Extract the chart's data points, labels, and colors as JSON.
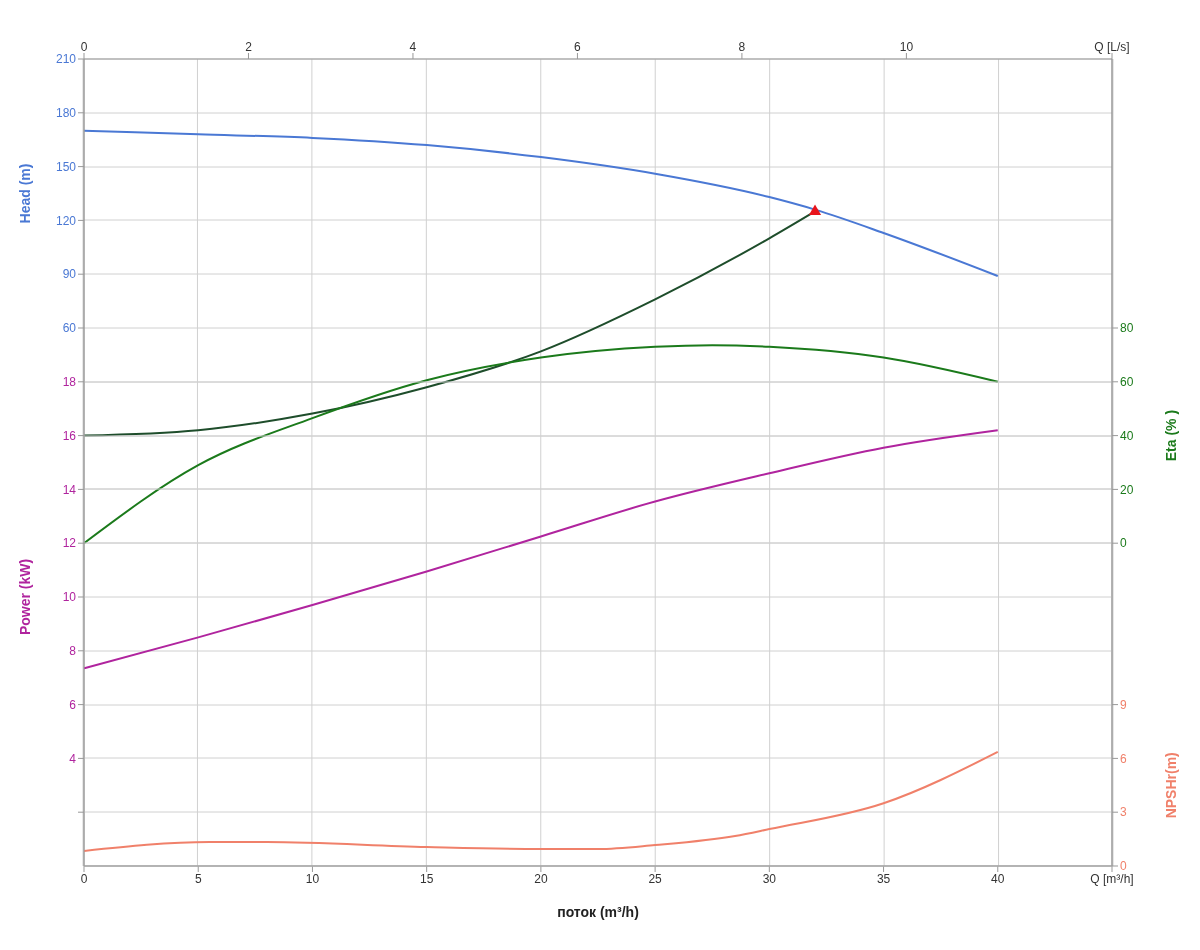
{
  "chart_data": [
    {
      "type": "line",
      "xlabel": "поток (m³/h)",
      "ylabel": "Head (m)",
      "y2label": "Eta (% )",
      "xlim": [
        0,
        45
      ],
      "xticks": [
        0,
        5,
        10,
        15,
        20,
        25,
        30,
        35,
        40,
        {
          "value": 45,
          "label": "Q [m³/h]"
        }
      ],
      "x2lim": [
        0,
        12.5
      ],
      "x2ticks": [
        0,
        2,
        4,
        6,
        8,
        10,
        {
          "value": 12.5,
          "label": "Q [L/s]"
        }
      ],
      "ylim": [
        -240,
        210
      ],
      "yticks": [
        60,
        90,
        120,
        150,
        180,
        210
      ],
      "y2lim": [
        -120,
        180
      ],
      "y2ticks": [
        0,
        20,
        40,
        60,
        80
      ],
      "grid": true,
      "series": [
        {
          "color": "#4a78d4",
          "x": [
            0,
            5,
            10,
            15,
            20,
            25,
            30,
            32,
            35,
            40
          ],
          "values": [
            170,
            168,
            166,
            162,
            155.3,
            146,
            133,
            126,
            113,
            89
          ]
        },
        {
          "color": "#1e4d2b",
          "x": [
            0,
            5,
            10,
            15,
            20,
            25,
            30,
            32
          ],
          "values": [
            0,
            3,
            12.3,
            27,
            47,
            76,
            110,
            125
          ]
        },
        {
          "color": "#1b7a1b",
          "axis": "y2",
          "x": [
            0,
            5,
            10,
            15,
            20,
            25,
            27.5,
            30,
            35,
            40
          ],
          "values": [
            0,
            29,
            46.5,
            60.6,
            69,
            73,
            73.6,
            73,
            69,
            60
          ]
        },
        {
          "type": "scatter",
          "marker": "triangle",
          "color": "#e8141c",
          "x": [
            32
          ],
          "values": [
            125
          ]
        }
      ]
    },
    {
      "type": "line",
      "ylabel": "Power (kW)",
      "y2label": "NPSHr(m)",
      "xlim": [
        0,
        45
      ],
      "ylim": [
        0,
        30
      ],
      "yticks": [
        {
          "value": 2,
          "label": null
        },
        4,
        6,
        8,
        10,
        12,
        14,
        16,
        18
      ],
      "y2lim": [
        0,
        45
      ],
      "y2ticks": [
        0,
        3,
        6,
        9
      ],
      "grid": "y",
      "tick_labels": "y",
      "series": [
        {
          "color": "#b0249e",
          "x": [
            0,
            5,
            10,
            15,
            20,
            25,
            30,
            35,
            40
          ],
          "values": [
            7.35,
            8.5,
            9.7,
            10.95,
            12.25,
            13.55,
            14.6,
            15.55,
            16.2
          ]
        },
        {
          "color": "#f0806a",
          "axis": "y2",
          "x": [
            0,
            5.5,
            8,
            15,
            20,
            22.5,
            25,
            28.5,
            30,
            35,
            40
          ],
          "values": [
            0.84,
            1.34,
            1.34,
            1.06,
            0.95,
            0.95,
            1.17,
            1.67,
            2.06,
            3.5,
            6.36
          ]
        }
      ]
    }
  ]
}
